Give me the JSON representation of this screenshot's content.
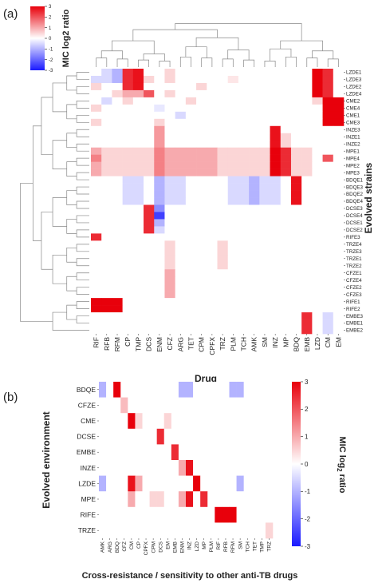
{
  "panel_a": {
    "panel_label": "(a)",
    "colorbar_title": "MIC log2 ratio",
    "colorbar_ticks": [
      "3",
      "2",
      "1",
      "0",
      "-1",
      "-2",
      "-3"
    ],
    "xlabel": "Drug",
    "ylabel": "Evolved strains"
  },
  "panel_b": {
    "panel_label": "(b)",
    "colorbar_title": "MIC log",
    "colorbar_title_sub": "2",
    "colorbar_title_tail": " ratio",
    "colorbar_ticks": [
      "3",
      "2",
      "1",
      "0",
      "-1",
      "-2",
      "-3"
    ],
    "xlabel": "Cross-resistance / sensitivity to other anti-TB drugs",
    "ylabel": "Evolved environment"
  },
  "colors": {
    "high": "#e8000b",
    "mid": "#ffffff",
    "low": "#1a1aff"
  },
  "chart_data": [
    {
      "type": "heatmap",
      "title": "",
      "vmin": -3,
      "vmax": 3,
      "columns": [
        "RIF",
        "RFB",
        "RFM",
        "CP",
        "TMP",
        "DCS",
        "ENM",
        "CFZ",
        "ARG",
        "TET",
        "CPM",
        "CPFX",
        "TRZ",
        "PLM",
        "TCH",
        "AMK",
        "SM",
        "INZ",
        "MP",
        "BDQ",
        "EMB",
        "LZD",
        "CM",
        "EM"
      ],
      "rows": [
        "LZDE1",
        "LZDE3",
        "LZDE2",
        "LZDE4",
        "CME2",
        "CME4",
        "CME1",
        "CME3",
        "INZE3",
        "INZE1",
        "INZE2",
        "MPE1",
        "MPE4",
        "MPE2",
        "MPE3",
        "BDQE1",
        "BDQE3",
        "BDQE2",
        "BDQE4",
        "DCSE3",
        "DCSE4",
        "DCSE1",
        "DCSE2",
        "RIFE3",
        "TRZE4",
        "TRZE3",
        "TRZE1",
        "TRZE2",
        "CFZE1",
        "CFZE4",
        "CFZE2",
        "CFZE3",
        "RIFE1",
        "RIFE2",
        "EMBE3",
        "EMBE1",
        "EMBE2"
      ],
      "values": [
        [
          0,
          -0.5,
          -1,
          2.5,
          2.8,
          0,
          0,
          0.5,
          0,
          0,
          0,
          0,
          0,
          0,
          0,
          0,
          0,
          0,
          0,
          0,
          0,
          3,
          2.5,
          0
        ],
        [
          -0.5,
          -0.5,
          -1,
          2.5,
          2.8,
          0.5,
          0,
          0.5,
          0,
          0,
          0,
          0,
          0,
          0.3,
          0,
          0,
          0,
          0,
          0,
          0,
          0,
          3,
          2.5,
          0
        ],
        [
          0.5,
          0,
          0,
          2.5,
          2.8,
          0,
          0,
          0,
          0,
          0,
          0.5,
          0,
          0,
          0,
          0,
          0,
          0,
          0,
          0,
          0,
          0,
          3,
          2.5,
          0
        ],
        [
          0,
          0,
          0.5,
          1,
          1,
          2,
          0,
          0.5,
          0,
          0,
          0,
          0,
          0,
          0,
          0,
          0,
          0,
          0,
          0,
          0,
          0,
          3,
          2.5,
          0
        ],
        [
          0,
          -0.5,
          0,
          0.5,
          0,
          0,
          0,
          0,
          0,
          0.5,
          0,
          0,
          0,
          0,
          0,
          0,
          0,
          0,
          0,
          0,
          0,
          0.5,
          3,
          3
        ],
        [
          0.5,
          0,
          0,
          0,
          0,
          0,
          -0.3,
          0,
          0,
          0,
          0,
          0,
          0,
          0,
          0,
          0,
          0,
          0,
          0,
          0,
          0,
          0,
          3,
          3
        ],
        [
          0,
          0,
          0,
          0,
          0,
          0,
          0,
          0,
          -0.5,
          0,
          0,
          0,
          0,
          0,
          0,
          0,
          0,
          0,
          0,
          0,
          0,
          0,
          3,
          3
        ],
        [
          0.5,
          0,
          0,
          0,
          0,
          0,
          0.5,
          0,
          0,
          0,
          0,
          0,
          0,
          0,
          0,
          0,
          0,
          0,
          0,
          0,
          0,
          0,
          3,
          3
        ],
        [
          0,
          0,
          0,
          0,
          0,
          0,
          1.2,
          0,
          0,
          0,
          0,
          0,
          0,
          0,
          0,
          0,
          0,
          2.8,
          0,
          0,
          0,
          0,
          0,
          0
        ],
        [
          0,
          0,
          0,
          0,
          0,
          0,
          1.2,
          0,
          0,
          0,
          0,
          0,
          0,
          0,
          0,
          0,
          0,
          2.8,
          0.5,
          0,
          0,
          0,
          0,
          0
        ],
        [
          0,
          0,
          0,
          0,
          0,
          0,
          1.2,
          0,
          0,
          0,
          0,
          0,
          0,
          0,
          0,
          0,
          0,
          2.8,
          0.5,
          0,
          0,
          0,
          0,
          0
        ],
        [
          1,
          0.5,
          0.5,
          0.5,
          0.5,
          0.5,
          1.5,
          1,
          1,
          1,
          1,
          1,
          0.5,
          0.5,
          0.5,
          0.5,
          0.5,
          3,
          2.5,
          0.5,
          0.5,
          0,
          0,
          0
        ],
        [
          1.5,
          0.5,
          0.5,
          0.5,
          0.5,
          0.5,
          1.5,
          1,
          1,
          1,
          1,
          1,
          0.5,
          0.5,
          0.5,
          0.5,
          0.5,
          3,
          2.5,
          0.5,
          0.5,
          0,
          2,
          0
        ],
        [
          1,
          0.5,
          0.5,
          0.5,
          0.5,
          0.5,
          1.5,
          1,
          1,
          1,
          1,
          1,
          0.5,
          0.5,
          0.5,
          0.5,
          0.5,
          3,
          2.5,
          0.5,
          0.5,
          0,
          0,
          0
        ],
        [
          1,
          0.5,
          0.5,
          0.5,
          0.5,
          0.5,
          1.5,
          1,
          1,
          1,
          1,
          1,
          0.5,
          0.5,
          0.5,
          0.5,
          0.5,
          3,
          2.5,
          0.5,
          0.5,
          0,
          0,
          0
        ],
        [
          0,
          0,
          0,
          -0.5,
          -0.5,
          0,
          -1,
          -0.5,
          -0.5,
          0,
          0,
          0,
          0,
          -0.5,
          -0.5,
          -1,
          -0.5,
          -0.5,
          0,
          2.8,
          0,
          0,
          0,
          0
        ],
        [
          0,
          0,
          0,
          -0.5,
          -0.5,
          0,
          -1,
          -0.5,
          -0.5,
          0,
          0,
          0,
          0,
          -0.5,
          -0.5,
          -1,
          -0.5,
          -0.5,
          0,
          2.8,
          0,
          0,
          0,
          0
        ],
        [
          0,
          0,
          0,
          -0.5,
          -0.5,
          0,
          -1,
          -0.5,
          -0.5,
          0,
          0,
          0,
          0,
          -0.5,
          -0.5,
          -1,
          -0.5,
          -0.5,
          0,
          2.8,
          0,
          0,
          0,
          0
        ],
        [
          0,
          0,
          0,
          -0.5,
          -0.5,
          0,
          -1,
          -0.5,
          -0.5,
          0,
          0,
          0,
          0,
          -0.5,
          -0.5,
          -1,
          -0.5,
          -0.5,
          0,
          2.8,
          0,
          0,
          0,
          0
        ],
        [
          0,
          0,
          0,
          0,
          0,
          2.5,
          -1.5,
          0,
          0,
          0,
          0,
          0,
          0,
          0,
          0,
          0,
          0,
          0,
          0,
          0,
          0,
          0,
          0,
          0
        ],
        [
          0,
          0,
          0,
          0,
          0,
          2.5,
          -2.5,
          0,
          0,
          0,
          0,
          0,
          0,
          0,
          0,
          0,
          0,
          0,
          0,
          0,
          0,
          0,
          0,
          0
        ],
        [
          0,
          0,
          0,
          0,
          0,
          2.5,
          -1,
          0,
          0,
          0,
          0,
          0,
          0,
          0,
          0,
          0,
          0,
          0,
          0,
          0,
          0,
          0,
          0,
          0
        ],
        [
          0,
          0,
          0,
          0,
          0,
          2.5,
          -0.5,
          0,
          0,
          0,
          0,
          0,
          0,
          0,
          0,
          0,
          0,
          0,
          0,
          0,
          0,
          0,
          0,
          0
        ],
        [
          2.5,
          0,
          0,
          0,
          0,
          0,
          0,
          0,
          0,
          0,
          0,
          0,
          0,
          0,
          0,
          0,
          0,
          0,
          0,
          0,
          0,
          0,
          0,
          0
        ],
        [
          0,
          0,
          0,
          0,
          0,
          0,
          0,
          0.5,
          0,
          0,
          0,
          0,
          0.5,
          0,
          0,
          0,
          0,
          0,
          0,
          0,
          0,
          0,
          0,
          0
        ],
        [
          0,
          0,
          0,
          0,
          0,
          0,
          0,
          0.5,
          0,
          0,
          0,
          0,
          0.5,
          0,
          0,
          0,
          0,
          0,
          0,
          0,
          0,
          0,
          0,
          0
        ],
        [
          0,
          0,
          0,
          0,
          0,
          0,
          0,
          0.5,
          0,
          0,
          0,
          0,
          0.5,
          0,
          0,
          0,
          0,
          0,
          0,
          0,
          0,
          0,
          0,
          0
        ],
        [
          0,
          0,
          0,
          0,
          0,
          0,
          0,
          0.5,
          0,
          0,
          0,
          0,
          0.5,
          0,
          0,
          0,
          0,
          0,
          0,
          0,
          0,
          0,
          0,
          0
        ],
        [
          0,
          0,
          0,
          0,
          0,
          0,
          0,
          1,
          0,
          0,
          0,
          0,
          0,
          0,
          0,
          0,
          0,
          0,
          0,
          0,
          0,
          0,
          0,
          0
        ],
        [
          0,
          0,
          0,
          0,
          0,
          0,
          0,
          1,
          0,
          0,
          0,
          0,
          0,
          0,
          0,
          0,
          0,
          0,
          0,
          0,
          0,
          0,
          0,
          0
        ],
        [
          0,
          0,
          0,
          0,
          0,
          0,
          0,
          1,
          0,
          0,
          0,
          0,
          0,
          0,
          0,
          0,
          0,
          0,
          0,
          0,
          0,
          0,
          0,
          0
        ],
        [
          0,
          0,
          0,
          0,
          0,
          0,
          0,
          1,
          0,
          0,
          0,
          0,
          0,
          0,
          0,
          0,
          0,
          0,
          0,
          0,
          0,
          0,
          0,
          0
        ],
        [
          3,
          3,
          3,
          0,
          0,
          0,
          0,
          0,
          0,
          0,
          0,
          0,
          0,
          0,
          0,
          0,
          0,
          0,
          0,
          0,
          0,
          0,
          0,
          0
        ],
        [
          3,
          3,
          3,
          0,
          0,
          0,
          0,
          0,
          0,
          0,
          0,
          0,
          0,
          0,
          0,
          0,
          0,
          0,
          0,
          0,
          0,
          0,
          0,
          0
        ],
        [
          0,
          0,
          0,
          0,
          0,
          0,
          0,
          0,
          0,
          0,
          0,
          0,
          0,
          0,
          0,
          0,
          0,
          0,
          0,
          0,
          2.5,
          0,
          -0.5,
          0
        ],
        [
          0,
          0,
          0,
          0,
          0,
          0,
          0,
          0,
          0,
          0,
          0,
          0,
          0,
          0,
          0,
          0,
          0,
          0,
          0,
          0,
          2.5,
          0,
          -0.5,
          0
        ],
        [
          0,
          0,
          0,
          0,
          0,
          0,
          0,
          0,
          0,
          0,
          0,
          0,
          0,
          0,
          0,
          0,
          0,
          0,
          0,
          0,
          2.5,
          0,
          -0.5,
          0
        ]
      ]
    },
    {
      "type": "heatmap",
      "title": "",
      "vmin": -3,
      "vmax": 3,
      "columns": [
        "AMK",
        "ARG",
        "BDQ",
        "CFZ",
        "CM",
        "CP",
        "CPFX",
        "CPM",
        "DCS",
        "EM",
        "EMB",
        "ENM",
        "INZ",
        "LZD",
        "MP",
        "PLM",
        "RIF",
        "RFB",
        "RFM",
        "SM",
        "TCH",
        "TET",
        "TMP",
        "TRZ"
      ],
      "rows": [
        "BDQE",
        "CFZE",
        "CME",
        "DCSE",
        "EMBE",
        "INZE",
        "LZDE",
        "MPE",
        "RIFE",
        "TRZE"
      ],
      "values": [
        [
          -1,
          0,
          3,
          0,
          0,
          0,
          0,
          0,
          0,
          0,
          0,
          -1,
          -1,
          0,
          0,
          0,
          0,
          0,
          -1,
          -1,
          0,
          0,
          0,
          0
        ],
        [
          0,
          0,
          0,
          0.8,
          0,
          0,
          0,
          0,
          0,
          0,
          0,
          0,
          0,
          0,
          0,
          0,
          0,
          0,
          0,
          0,
          0,
          0,
          0,
          0
        ],
        [
          0,
          0,
          0,
          0,
          3,
          0.5,
          0,
          0,
          0,
          0.5,
          0,
          0,
          0,
          0,
          0,
          0,
          0,
          0,
          0,
          0,
          0,
          0,
          0,
          0
        ],
        [
          0,
          0,
          0,
          0,
          0,
          0,
          0,
          0,
          2.5,
          0,
          0,
          0,
          0,
          0,
          0,
          0,
          0,
          0,
          0,
          0,
          0,
          0,
          0,
          0
        ],
        [
          0,
          0,
          0,
          0,
          0,
          0,
          0,
          0,
          0,
          0,
          2.5,
          0,
          0,
          0,
          0,
          0,
          0,
          0,
          0,
          0,
          0,
          0,
          0,
          0
        ],
        [
          0,
          0,
          0,
          0,
          0,
          0,
          0,
          0,
          0,
          0,
          0,
          1,
          2.8,
          0,
          0,
          0,
          0,
          0,
          0,
          0,
          0,
          0,
          0,
          0
        ],
        [
          -1,
          0,
          0,
          0,
          2.8,
          1,
          0,
          0,
          0,
          0,
          0,
          0,
          0,
          3,
          0,
          0,
          0,
          0,
          0,
          -1,
          0,
          0,
          0,
          0
        ],
        [
          0,
          0,
          0,
          0,
          1,
          0,
          0,
          0.5,
          0.5,
          0,
          0,
          1,
          2.8,
          0,
          2.5,
          0,
          0,
          0,
          0,
          0,
          0,
          0,
          0,
          0
        ],
        [
          0,
          0,
          0,
          0,
          0,
          0,
          0,
          0,
          0,
          0,
          0,
          0,
          0,
          0,
          0,
          0,
          3,
          3,
          3,
          0,
          0,
          0,
          0,
          0
        ],
        [
          0,
          0,
          0,
          0,
          0,
          0,
          0,
          0,
          0,
          0,
          0,
          0,
          0,
          0,
          0,
          0,
          0,
          0,
          0,
          0,
          0,
          0,
          0,
          0.5
        ]
      ]
    }
  ]
}
